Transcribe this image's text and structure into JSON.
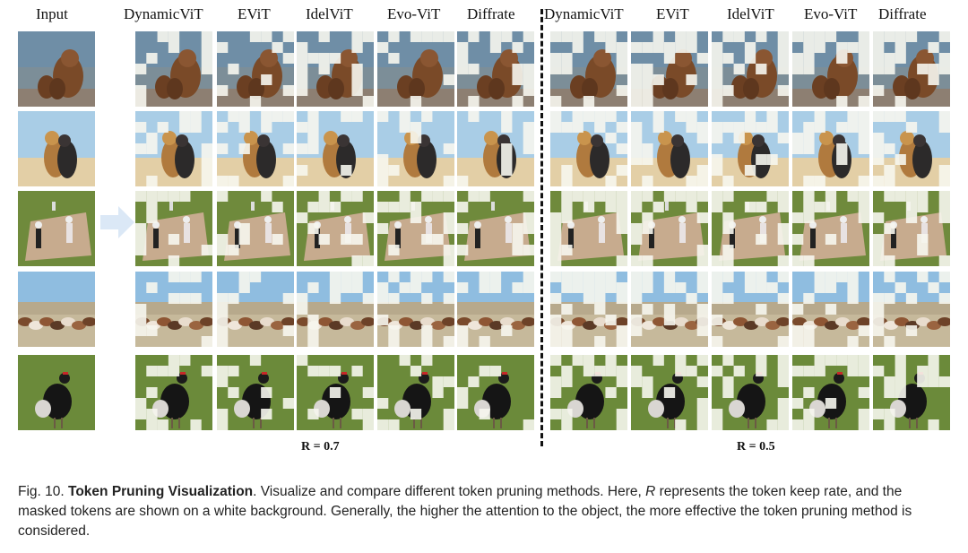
{
  "figure": {
    "input_label": "Input",
    "method_labels": [
      "DynamicViT",
      "EViT",
      "IdelViT",
      "Evo-ViT",
      "Diffrate"
    ],
    "groups": [
      {
        "rate_label": "R = 0.7"
      },
      {
        "rate_label": "R = 0.5"
      }
    ],
    "rows": [
      {
        "subject": "bear"
      },
      {
        "subject": "dogs"
      },
      {
        "subject": "cricket"
      },
      {
        "subject": "horses"
      },
      {
        "subject": "bird"
      }
    ]
  },
  "caption": {
    "prefix": "Fig. 10.",
    "title": "Token Pruning Visualization",
    "text_a": ". Visualize and compare different token pruning methods. Here, ",
    "symbol": "R",
    "text_b": " represents the token keep rate, and the masked tokens are shown on a white background. Generally, the higher the attention to the object, the more effective the token pruning method is considered."
  },
  "colors": {
    "text": "#111111",
    "arrow": "#dbe8f6",
    "mask": "#f6f6ee"
  }
}
